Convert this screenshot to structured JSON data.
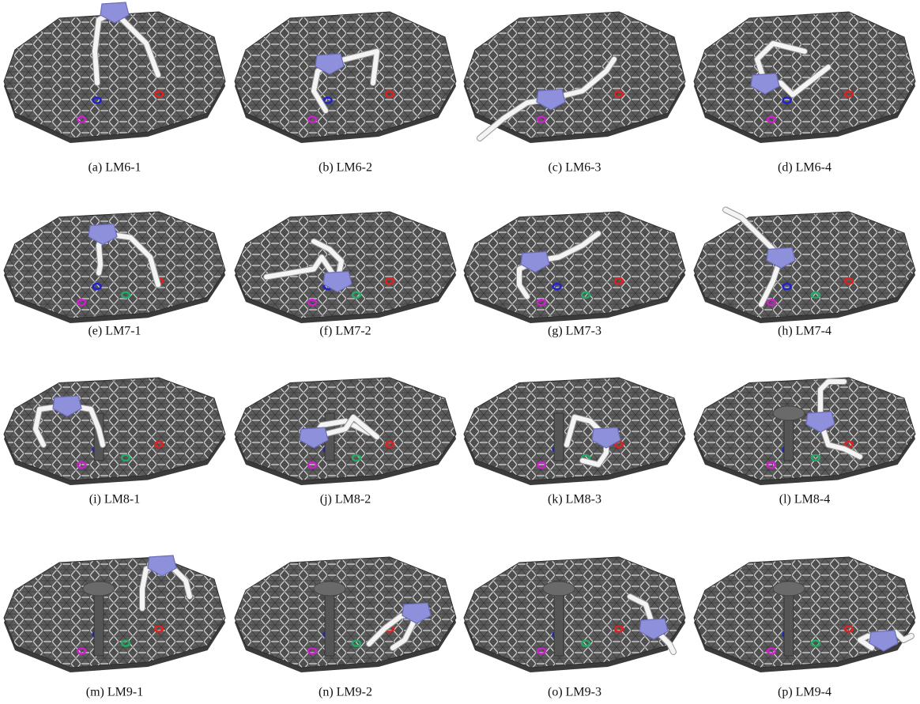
{
  "figure": {
    "panels": [
      {
        "caption": "(a) LM6-1"
      },
      {
        "caption": "(b) LM6-2"
      },
      {
        "caption": "(c) LM6-3"
      },
      {
        "caption": "(d) LM6-4"
      },
      {
        "caption": "(e) LM7-1"
      },
      {
        "caption": "(f) LM7-2"
      },
      {
        "caption": "(g) LM7-3"
      },
      {
        "caption": "(h) LM7-4"
      },
      {
        "caption": "(i) LM8-1"
      },
      {
        "caption": "(j) LM8-2"
      },
      {
        "caption": "(k) LM8-3"
      },
      {
        "caption": "(l) LM8-4"
      },
      {
        "caption": "(m) LM9-1"
      },
      {
        "caption": "(n) LM9-2"
      },
      {
        "caption": "(o) LM9-3"
      },
      {
        "caption": "(p) LM9-4"
      }
    ]
  }
}
